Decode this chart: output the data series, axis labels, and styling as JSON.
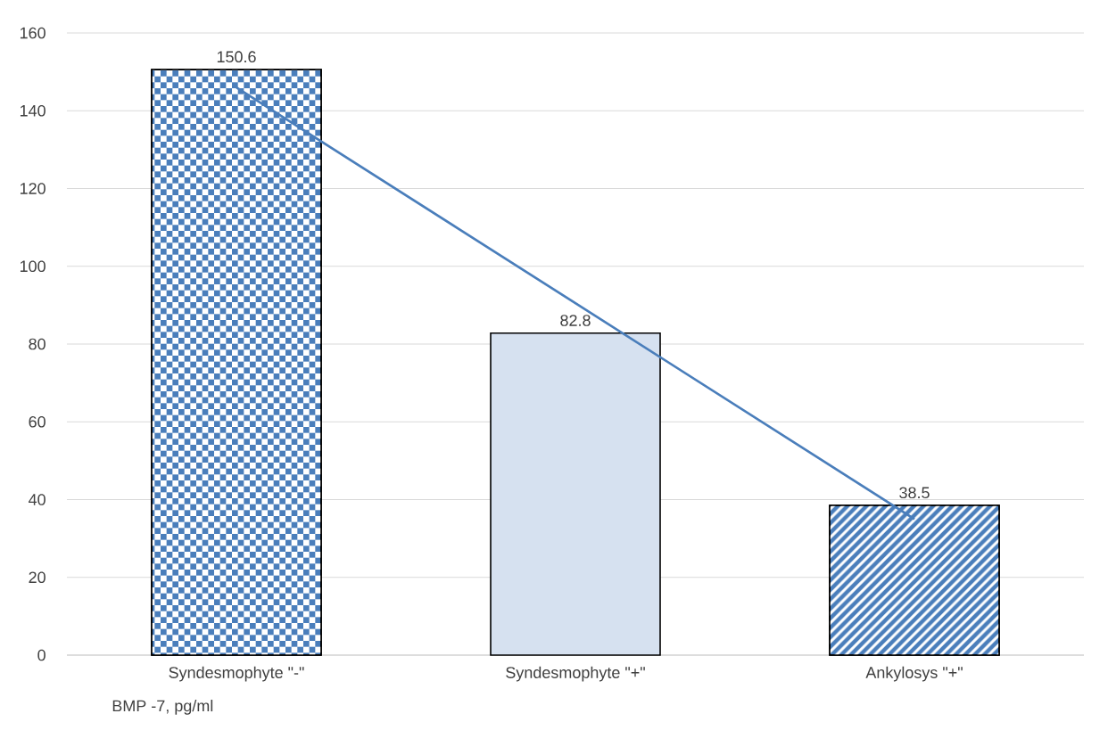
{
  "chart_data": {
    "type": "bar",
    "xlabel": "BMP -7, pg/ml",
    "categories": [
      "Syndesmophyte  \"-\"",
      "Syndesmophyte \"+\"",
      "Ankylosys \"+\""
    ],
    "series": [
      {
        "type": "bar",
        "values": [
          150.6,
          82.8,
          38.5
        ],
        "colors": [
          "#4a7ebb",
          "#d6e1f0",
          "#4a7ebb"
        ],
        "data_labels": true
      },
      {
        "type": "line",
        "values": [
          146,
          90.5,
          35
        ],
        "color": "#4a7ebb"
      }
    ],
    "ylim": [
      0,
      160
    ],
    "yticks": [
      0,
      20,
      40,
      60,
      80,
      100,
      120,
      140,
      160
    ],
    "grid": "y"
  }
}
